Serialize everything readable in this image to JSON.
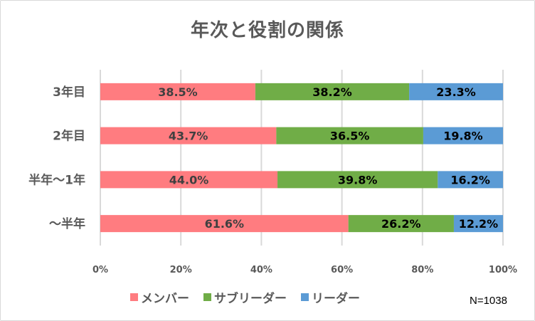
{
  "chart_data": {
    "type": "bar",
    "orientation": "horizontal",
    "stacked": "percent",
    "title": "年次と役割の関係",
    "categories": [
      "3年目",
      "2年目",
      "半年〜1年",
      "〜半年"
    ],
    "series": [
      {
        "name": "メンバー",
        "color": "#FF7C80",
        "label_color": "#404040",
        "values": [
          38.5,
          43.7,
          44.0,
          61.6
        ],
        "labels": [
          "38.5%",
          "43.7%",
          "44.0%",
          "61.6%"
        ]
      },
      {
        "name": "サブリーダー",
        "color": "#70AD47",
        "label_color": "#000000",
        "values": [
          38.2,
          36.5,
          39.8,
          26.2
        ],
        "labels": [
          "38.2%",
          "36.5%",
          "39.8%",
          "26.2%"
        ]
      },
      {
        "name": "リーダー",
        "color": "#5B9BD5",
        "label_color": "#000000",
        "values": [
          23.3,
          19.8,
          16.2,
          12.2
        ],
        "labels": [
          "23.3%",
          "19.8%",
          "16.2%",
          "12.2%"
        ]
      }
    ],
    "xticks": [
      "0%",
      "20%",
      "40%",
      "60%",
      "80%",
      "100%"
    ],
    "xlim": [
      0,
      100
    ],
    "grid": true,
    "legend": "bottom",
    "annotation": "N=1038"
  }
}
